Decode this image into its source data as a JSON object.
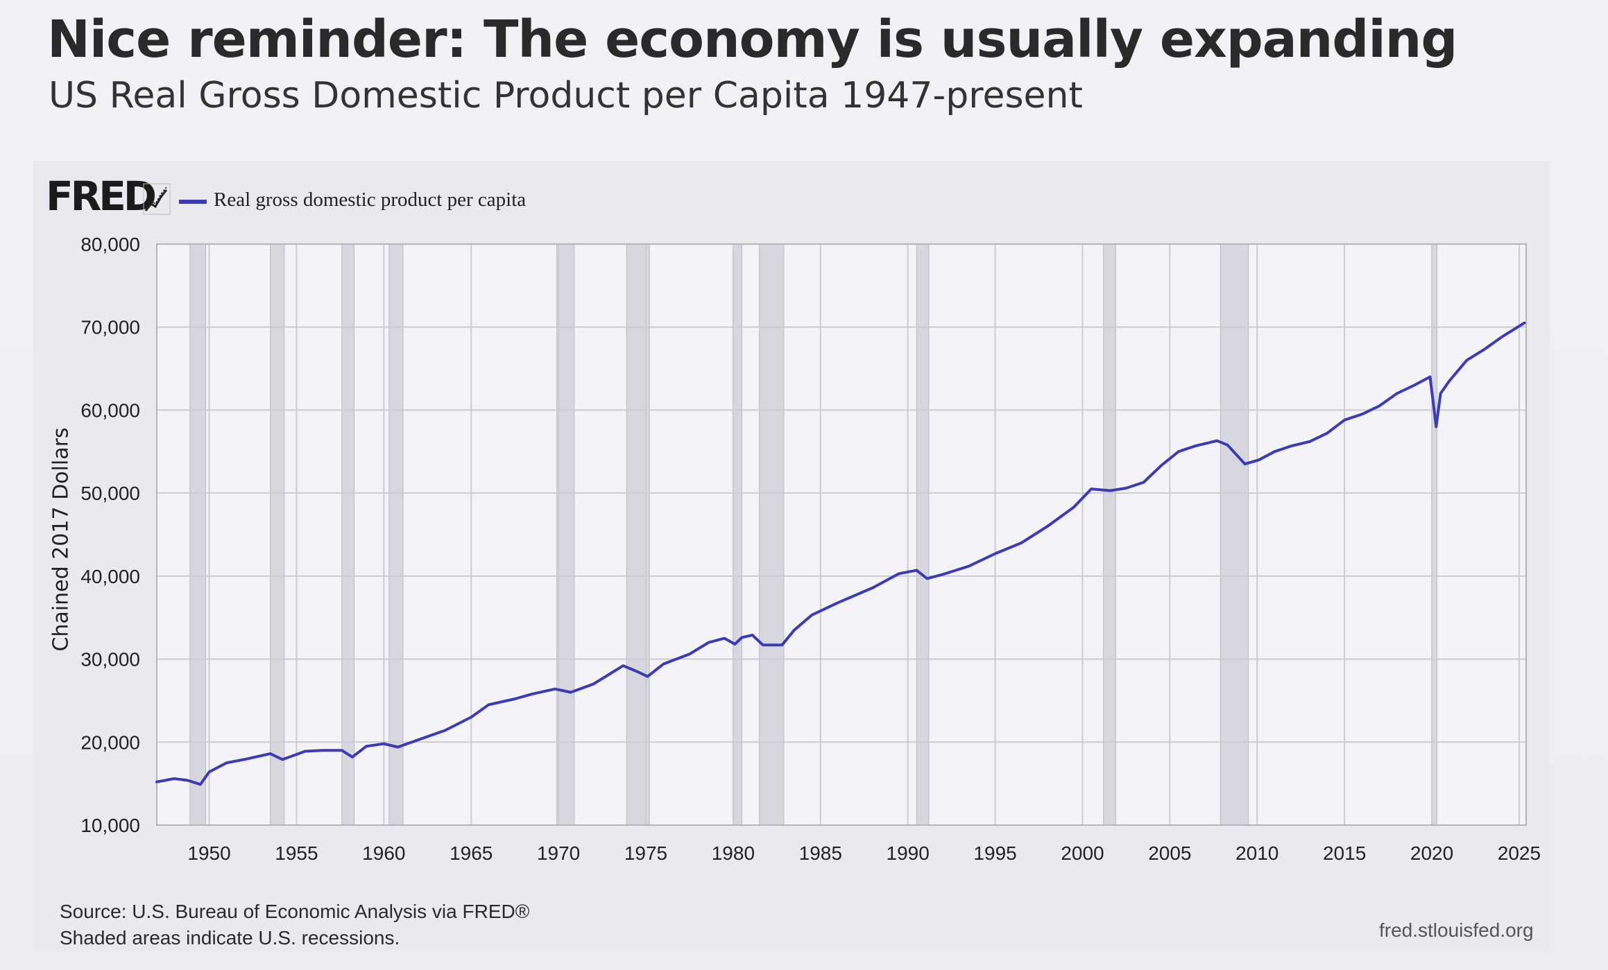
{
  "headline": "Nice reminder: The economy is usually expanding",
  "subheadline": "US Real Gross Domestic Product per Capita 1947-present",
  "fred": {
    "logo": "FRED",
    "logo_icon": "trend-line-icon",
    "site": "fred.stlouisfed.org",
    "source_line1": "Source: U.S. Bureau of Economic Analysis via FRED®",
    "source_line2": "Shaded areas indicate U.S. recessions."
  },
  "colors": {
    "series": "#3b3bb8",
    "recession": "#d7d7df",
    "plot_bg": "#f4f4f8",
    "grid": "#cbcbd3"
  },
  "chart_data": {
    "type": "line",
    "title": "US Real Gross Domestic Product per Capita 1947-present",
    "xlabel": "",
    "ylabel": "Chained 2017 Dollars",
    "xlim": [
      1947,
      2025.4
    ],
    "ylim": [
      10000,
      80000
    ],
    "y_ticks": [
      10000,
      20000,
      30000,
      40000,
      50000,
      60000,
      70000,
      80000
    ],
    "y_tick_labels": [
      "10,000",
      "20,000",
      "30,000",
      "40,000",
      "50,000",
      "60,000",
      "70,000",
      "80,000"
    ],
    "x_ticks": [
      1950,
      1955,
      1960,
      1965,
      1970,
      1975,
      1980,
      1985,
      1990,
      1995,
      2000,
      2005,
      2010,
      2015,
      2020,
      2025
    ],
    "x_tick_labels": [
      "1950",
      "1955",
      "1960",
      "1965",
      "1970",
      "1975",
      "1980",
      "1985",
      "1990",
      "1995",
      "2000",
      "2005",
      "2010",
      "2015",
      "2020",
      "2025"
    ],
    "grid": true,
    "legend": "top-left",
    "series": [
      {
        "name": "Real gross domestic product per capita",
        "x": [
          1947,
          1948,
          1948.75,
          1949.5,
          1950,
          1951,
          1952,
          1953.5,
          1954.2,
          1955.5,
          1956.5,
          1957.6,
          1958.2,
          1959,
          1960,
          1960.8,
          1962,
          1963.5,
          1965,
          1966,
          1967.5,
          1968.5,
          1969.8,
          1970.7,
          1972,
          1973.7,
          1974.5,
          1975.1,
          1976,
          1977.5,
          1978.6,
          1979.5,
          1980.1,
          1980.5,
          1981.1,
          1981.7,
          1982.8,
          1983.5,
          1984.5,
          1986,
          1988,
          1989.5,
          1990.5,
          1991.1,
          1992,
          1993.5,
          1995,
          1996.5,
          1998,
          1999.5,
          2000.5,
          2001.6,
          2002.5,
          2003.5,
          2004.5,
          2005.5,
          2006.5,
          2007.7,
          2008.3,
          2009.3,
          2010.1,
          2011,
          2012,
          2013,
          2014,
          2015,
          2016,
          2017,
          2018,
          2019,
          2019.9,
          2020.25,
          2020.5,
          2021,
          2022,
          2023,
          2024,
          2025.3
        ],
        "values": [
          15200,
          15600,
          15400,
          14900,
          16400,
          17500,
          17900,
          18600,
          17900,
          18900,
          19000,
          19000,
          18200,
          19500,
          19800,
          19400,
          20300,
          21400,
          23000,
          24500,
          25200,
          25800,
          26400,
          26000,
          27000,
          29200,
          28500,
          27900,
          29400,
          30600,
          32000,
          32500,
          31800,
          32600,
          32900,
          31700,
          31700,
          33500,
          35300,
          36800,
          38600,
          40300,
          40700,
          39700,
          40200,
          41200,
          42700,
          44000,
          46000,
          48300,
          50500,
          50300,
          50600,
          51300,
          53300,
          55000,
          55700,
          56300,
          55800,
          53500,
          54000,
          55000,
          55700,
          56200,
          57200,
          58800,
          59500,
          60500,
          62000,
          63000,
          64000,
          58000,
          62000,
          63500,
          66000,
          67300,
          68800,
          70500
        ]
      }
    ],
    "recessions": [
      [
        1948.9,
        1949.8
      ],
      [
        1953.5,
        1954.3
      ],
      [
        1957.6,
        1958.3
      ],
      [
        1960.3,
        1961.1
      ],
      [
        1969.9,
        1970.9
      ],
      [
        1973.9,
        1975.2
      ],
      [
        1980.0,
        1980.5
      ],
      [
        1981.5,
        1982.9
      ],
      [
        1990.5,
        1991.2
      ],
      [
        2001.2,
        2001.9
      ],
      [
        2007.9,
        2009.5
      ],
      [
        2020.0,
        2020.3
      ]
    ]
  }
}
